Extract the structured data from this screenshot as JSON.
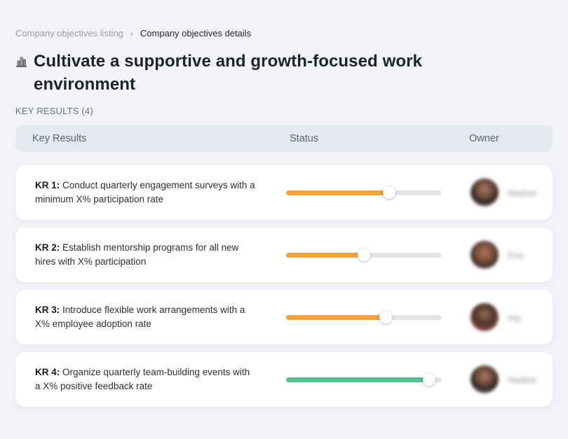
{
  "breadcrumb": {
    "items": [
      {
        "label": "Company objectives listing"
      },
      {
        "label": "Company objectives details"
      }
    ],
    "separator": "›"
  },
  "header": {
    "icon": "city-buildings-icon",
    "title": "Cultivate a supportive and growth-focused work environment",
    "section_label": "KEY RESULTS (4)"
  },
  "table": {
    "columns": {
      "key_results": "Key Results",
      "status": "Status",
      "owner": "Owner"
    },
    "rows": [
      {
        "kr_label": "KR 1:",
        "kr_text": "Conduct quarterly engagement surveys with a minimum X% participation rate",
        "progress_percent": 66,
        "progress_color": "#F9A23C",
        "owner_name": "Nadine"
      },
      {
        "kr_label": "KR 2:",
        "kr_text": "Establish mentorship programs for all new hires with X% participation",
        "progress_percent": 50,
        "progress_color": "#F9A23C",
        "owner_name": "Eva"
      },
      {
        "kr_label": "KR 3:",
        "kr_text": "Introduce flexible work arrangements with a X% employee adoption rate",
        "progress_percent": 64,
        "progress_color": "#F9A23C",
        "owner_name": "Ing"
      },
      {
        "kr_label": "KR 4:",
        "kr_text": "Organize quarterly team-building events with a X% positive feedback rate",
        "progress_percent": 92,
        "progress_color": "#55C28B",
        "owner_name": "Nadine"
      }
    ]
  },
  "colors": {
    "page_background": "#F1F3F6",
    "header_bar_background": "#E3E8F1",
    "card_background": "#FFFFFF",
    "progress_track": "#E4E4E6",
    "progress_orange": "#F9A23C",
    "progress_green": "#55C28B"
  }
}
